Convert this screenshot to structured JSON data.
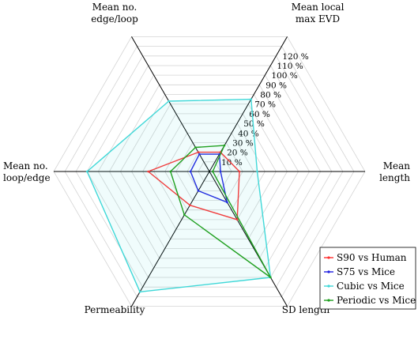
{
  "chart_data": {
    "type": "radar",
    "axes": [
      "Mean local max EVD",
      "Mean length",
      "SD length",
      "Permeability",
      "Mean no. loop/edge",
      "Mean no. edge/loop"
    ],
    "axis_label_lines": [
      [
        "Mean local",
        "max EVD"
      ],
      [
        "Mean",
        "length"
      ],
      [
        "SD length"
      ],
      [
        "Permeability"
      ],
      [
        "Mean no.",
        "loop/edge"
      ],
      [
        "Mean no.",
        "edge/loop"
      ]
    ],
    "ticks": [
      "10 %",
      "20 %",
      "30 %",
      "40 %",
      "50 %",
      "60 %",
      "70 %",
      "80 %",
      "90 %",
      "100 %",
      "110 %",
      "120 %"
    ],
    "tick_values": [
      10,
      20,
      30,
      40,
      50,
      60,
      70,
      80,
      90,
      100,
      110,
      120
    ],
    "rlim": [
      0,
      140
    ],
    "grid": true,
    "legend_position": "bottom-right",
    "series": [
      {
        "name": "S90 vs Human",
        "color": "#ff3030",
        "values": [
          20,
          27,
          50,
          35,
          55,
          20
        ],
        "fill": false
      },
      {
        "name": "S75 vs Mice",
        "color": "#2020e0",
        "values": [
          18,
          10,
          32,
          20,
          17,
          18
        ],
        "fill": false
      },
      {
        "name": "Cubic vs Mice",
        "color": "#40d8d8",
        "values": [
          75,
          43,
          110,
          125,
          110,
          73
        ],
        "fill": true
      },
      {
        "name": "Periodic vs Mice",
        "color": "#20a020",
        "values": [
          27,
          3,
          110,
          45,
          35,
          25
        ],
        "fill": false
      }
    ]
  }
}
